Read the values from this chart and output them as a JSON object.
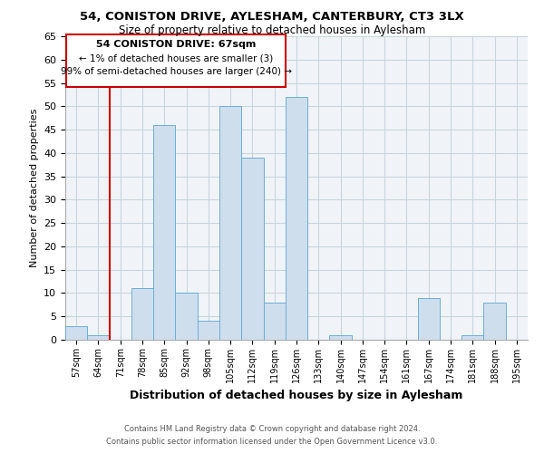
{
  "title": "54, CONISTON DRIVE, AYLESHAM, CANTERBURY, CT3 3LX",
  "subtitle": "Size of property relative to detached houses in Aylesham",
  "xlabel": "Distribution of detached houses by size in Aylesham",
  "ylabel": "Number of detached properties",
  "bin_labels": [
    "57sqm",
    "64sqm",
    "71sqm",
    "78sqm",
    "85sqm",
    "92sqm",
    "98sqm",
    "105sqm",
    "112sqm",
    "119sqm",
    "126sqm",
    "133sqm",
    "140sqm",
    "147sqm",
    "154sqm",
    "161sqm",
    "167sqm",
    "174sqm",
    "181sqm",
    "188sqm",
    "195sqm"
  ],
  "bar_values": [
    3,
    1,
    0,
    11,
    46,
    10,
    4,
    50,
    39,
    8,
    52,
    0,
    1,
    0,
    0,
    0,
    9,
    0,
    1,
    8,
    0
  ],
  "bar_color": "#cfdeed",
  "bar_edge_color": "#6baed6",
  "highlight_color": "#cc0000",
  "ylim": [
    0,
    65
  ],
  "yticks": [
    0,
    5,
    10,
    15,
    20,
    25,
    30,
    35,
    40,
    45,
    50,
    55,
    60,
    65
  ],
  "annotation_title": "54 CONISTON DRIVE: 67sqm",
  "annotation_line1": "← 1% of detached houses are smaller (3)",
  "annotation_line2": "99% of semi-detached houses are larger (240) →",
  "footer1": "Contains HM Land Registry data © Crown copyright and database right 2024.",
  "footer2": "Contains public sector information licensed under the Open Government Licence v3.0.",
  "bg_color": "#ffffff",
  "plot_bg_color": "#f0f4f8",
  "grid_color": "#c8d4de"
}
